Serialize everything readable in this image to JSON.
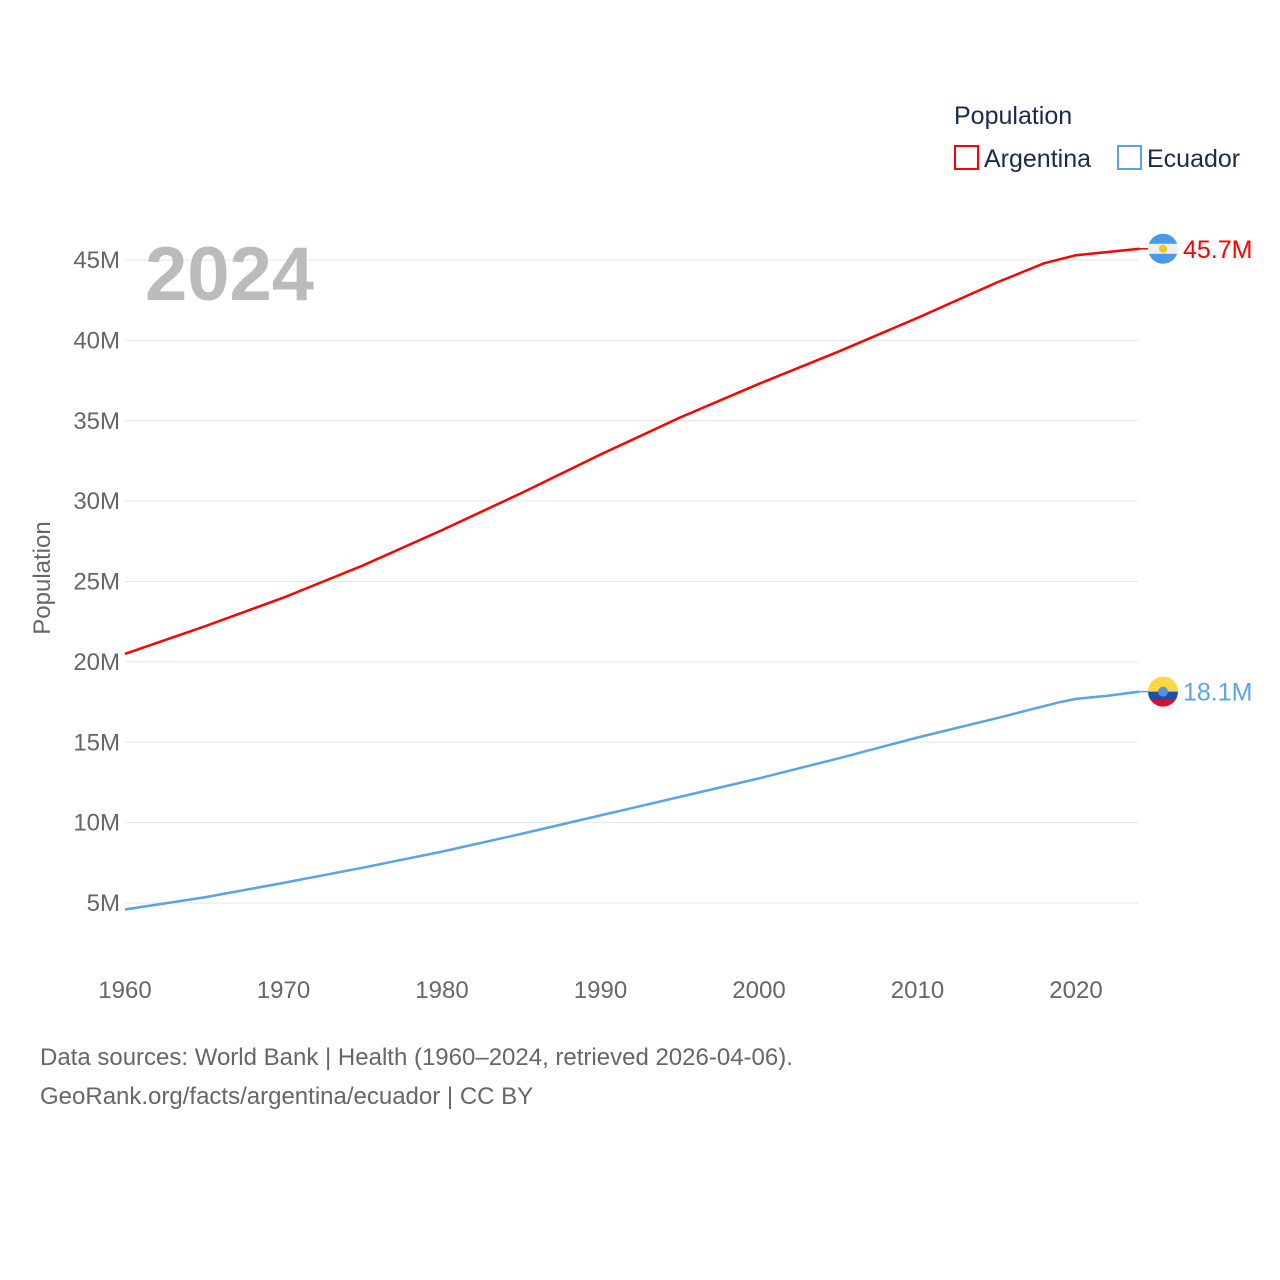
{
  "chart_data": {
    "type": "line",
    "year_label": "2024",
    "ylabel": "Population",
    "xlim": [
      1960,
      2024
    ],
    "ylim": [
      0,
      47
    ],
    "x_ticks": [
      1960,
      1970,
      1980,
      1990,
      2000,
      2010,
      2020
    ],
    "y_ticks": [
      5,
      10,
      15,
      20,
      25,
      30,
      35,
      40,
      45
    ],
    "y_tick_labels": [
      "5M",
      "10M",
      "15M",
      "20M",
      "25M",
      "30M",
      "35M",
      "40M",
      "45M"
    ],
    "grid": true,
    "legend": {
      "title": "Population",
      "placement": "top-right"
    },
    "series": [
      {
        "name": "Argentina",
        "color": "#ff0000",
        "end_label": "45.7M",
        "icon": "argentina-flag-icon",
        "x": [
          1960,
          1965,
          1970,
          1975,
          1980,
          1985,
          1990,
          1995,
          2000,
          2005,
          2010,
          2015,
          2018,
          2020,
          2022,
          2024
        ],
        "values": [
          20.5,
          22.2,
          24.0,
          26.0,
          28.2,
          30.5,
          32.9,
          35.2,
          37.3,
          39.3,
          41.4,
          43.6,
          44.8,
          45.3,
          45.5,
          45.7
        ]
      },
      {
        "name": "Ecuador",
        "color": "#5ba3e8",
        "end_label": "18.1M",
        "icon": "ecuador-flag-icon",
        "x": [
          1960,
          1965,
          1970,
          1975,
          1980,
          1985,
          1990,
          1995,
          2000,
          2005,
          2010,
          2015,
          2017,
          2019,
          2020,
          2022,
          2024
        ],
        "values": [
          4.6,
          5.35,
          6.25,
          7.2,
          8.2,
          9.3,
          10.45,
          11.6,
          12.75,
          14.0,
          15.3,
          16.5,
          17.0,
          17.5,
          17.7,
          17.9,
          18.15
        ]
      }
    ]
  },
  "footer": {
    "line1": "Data sources: World Bank | Health (1960–2024, retrieved 2026-04-06).",
    "line2": "GeoRank.org/facts/argentina/ecuador | CC BY"
  }
}
